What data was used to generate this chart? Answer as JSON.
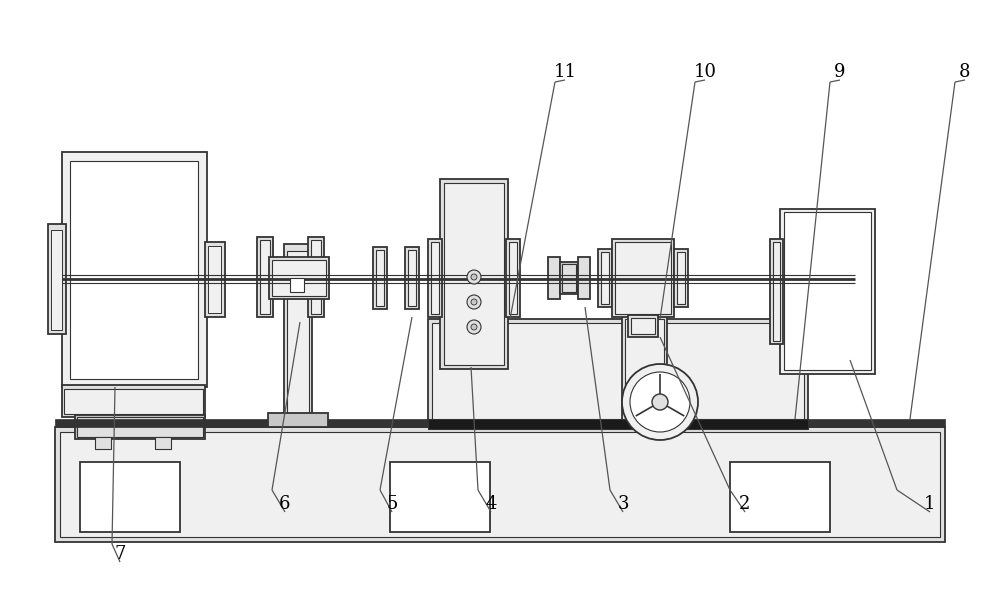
{
  "fig_width": 10.0,
  "fig_height": 6.02,
  "dpi": 100,
  "bg_color": "#ffffff",
  "lc": "#333333",
  "fc_white": "#ffffff",
  "fc_light": "#f0f0f0",
  "fc_mid": "#e0e0e0",
  "fc_dark": "#c8c8c8",
  "fc_black": "#1a1a1a",
  "label_fontsize": 13
}
